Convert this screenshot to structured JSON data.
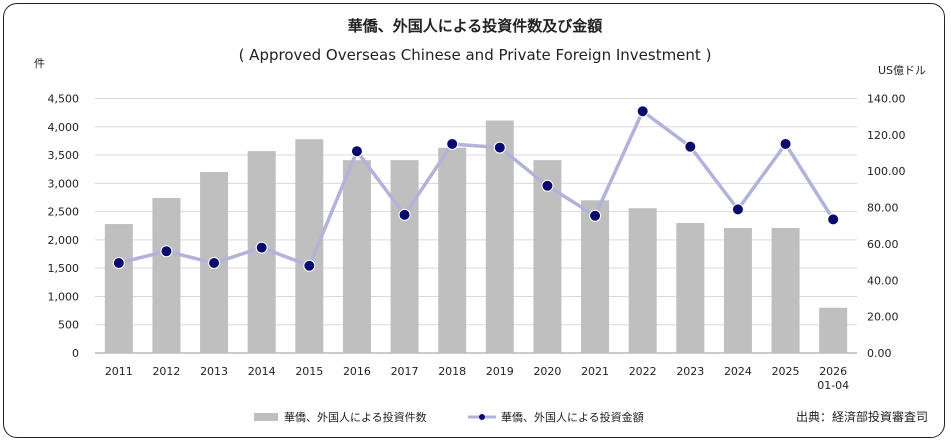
{
  "chart_data": {
    "type": "bar",
    "title": "華僑、外国人による投資件数及び金額",
    "subtitle": "( Approved Overseas Chinese and Private Foreign Investment )",
    "y_left_unit": "件",
    "y_right_unit": "US億ドル",
    "categories": [
      "2011",
      "2012",
      "2013",
      "2014",
      "2015",
      "2016",
      "2017",
      "2018",
      "2019",
      "2020",
      "2021",
      "2022",
      "2023",
      "2024",
      "2025",
      "2026\n01-04"
    ],
    "y_left_ticks": [
      "0",
      "500",
      "1,000",
      "1,500",
      "2,000",
      "2,500",
      "3,000",
      "3,500",
      "4,000",
      "4,500"
    ],
    "y_right_ticks": [
      "0.00",
      "20.00",
      "40.00",
      "60.00",
      "80.00",
      "100.00",
      "120.00",
      "140.00"
    ],
    "ylim_left": [
      0,
      4500
    ],
    "ylim_right": [
      0,
      140
    ],
    "series": [
      {
        "name": "華僑、外国人による投資件数",
        "type": "bar",
        "axis": "left",
        "color": "#bfbfbf",
        "values": [
          2280,
          2740,
          3200,
          3570,
          3780,
          3410,
          3410,
          3630,
          4110,
          3410,
          2700,
          2560,
          2300,
          2210,
          2210,
          800
        ]
      },
      {
        "name": "華僑、外国人による投資金額",
        "type": "line",
        "axis": "right",
        "line_color": "#b3b3d9",
        "marker_color": "#0a0a6e",
        "values": [
          49.5,
          56,
          49.5,
          58,
          48,
          111,
          76,
          115,
          113,
          92,
          75.5,
          133,
          113.5,
          79,
          115,
          73.5
        ]
      }
    ],
    "grid": true,
    "legend_position": "bottom"
  },
  "source": "出典：経済部投資審査司"
}
